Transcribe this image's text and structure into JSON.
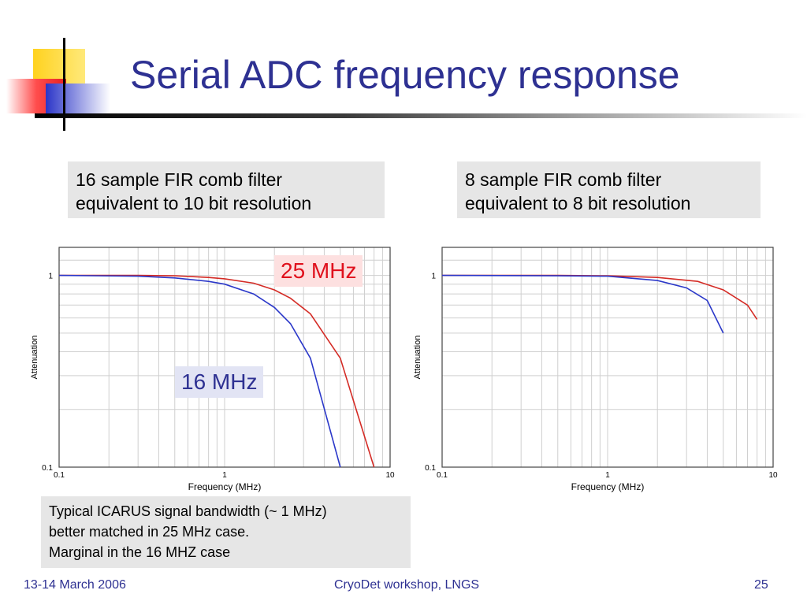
{
  "slide": {
    "title": "Serial ADC frequency response",
    "footer_left": "13-14 March 2006",
    "footer_center": "CryoDet workshop, LNGS",
    "footer_right": "25"
  },
  "captions": {
    "left": [
      "16 sample FIR comb filter",
      "equivalent to 10 bit resolution"
    ],
    "right": [
      "8 sample FIR comb filter",
      "equivalent to 8 bit resolution"
    ]
  },
  "note": {
    "line1": "Typical ICARUS signal bandwidth (~ 1 MHz)",
    "line2": "better matched in 25 MHz case.",
    "line3": "Marginal in the 16 MHZ case"
  },
  "labels": {
    "mhz25": "25 MHz",
    "mhz16": "16 MHz"
  },
  "colors": {
    "title": "#2e3192",
    "red_series": "#d42b25",
    "blue_series": "#2b38c9",
    "box_bg": "#e6e6e6"
  },
  "chart_data": [
    {
      "type": "line",
      "xlabel": "Frequency (MHz)",
      "ylabel": "Attenuation",
      "x_scale": "log",
      "y_scale": "log",
      "xlim": [
        0.1,
        10
      ],
      "ylim": [
        0.1,
        1.4
      ],
      "x_ticks": [
        "0.1",
        "1",
        "10"
      ],
      "y_ticks": [
        "0.1",
        "1"
      ],
      "grid": true,
      "series": [
        {
          "name": "25 MHz",
          "color": "#d42b25",
          "x": [
            0.1,
            0.3,
            0.5,
            0.8,
            1.0,
            1.5,
            2.0,
            2.5,
            3.3,
            5.0,
            8.0
          ],
          "y": [
            1.0,
            1.0,
            0.995,
            0.975,
            0.96,
            0.91,
            0.84,
            0.76,
            0.63,
            0.37,
            0.1
          ]
        },
        {
          "name": "16 MHz",
          "color": "#2b38c9",
          "x": [
            0.1,
            0.3,
            0.5,
            0.8,
            1.0,
            1.5,
            2.0,
            2.5,
            3.3,
            5.0
          ],
          "y": [
            1.0,
            0.99,
            0.97,
            0.93,
            0.9,
            0.8,
            0.68,
            0.56,
            0.37,
            0.1
          ]
        }
      ]
    },
    {
      "type": "line",
      "xlabel": "Frequency (MHz)",
      "ylabel": "Attenuation",
      "x_scale": "log",
      "y_scale": "log",
      "xlim": [
        0.1,
        10
      ],
      "ylim": [
        0.1,
        1.4
      ],
      "x_ticks": [
        "0.1",
        "1",
        "10"
      ],
      "y_ticks": [
        "0.1",
        "1"
      ],
      "grid": true,
      "series": [
        {
          "name": "",
          "color": "#d42b25",
          "x": [
            0.1,
            0.5,
            1.0,
            2.0,
            3.5,
            5.0,
            7.0,
            8.0
          ],
          "y": [
            1.0,
            1.0,
            0.995,
            0.975,
            0.93,
            0.84,
            0.7,
            0.59
          ]
        },
        {
          "name": "",
          "color": "#2b38c9",
          "x": [
            0.1,
            0.5,
            1.0,
            2.0,
            3.0,
            4.0,
            5.0
          ],
          "y": [
            1.0,
            0.995,
            0.99,
            0.94,
            0.86,
            0.74,
            0.5
          ]
        }
      ]
    }
  ]
}
